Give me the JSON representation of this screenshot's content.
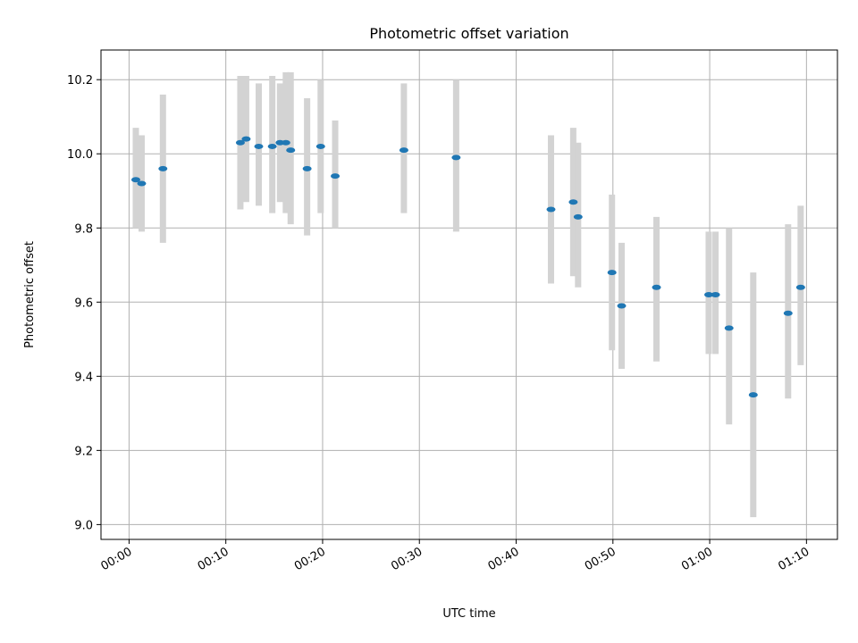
{
  "chart_data": {
    "type": "scatter",
    "title": "Photometric offset variation",
    "xlabel": "UTC time",
    "ylabel": "Photometric offset",
    "x_unit": "minutes",
    "xlim": [
      -2.9,
      73.2
    ],
    "ylim": [
      8.96,
      10.28
    ],
    "grid": true,
    "legend": "none",
    "colors": {
      "marker": "#1f77b4",
      "errorbar": "#d3d3d3",
      "grid": "#b0b0b0",
      "frame": "#000000"
    },
    "x_ticks": [
      {
        "value": 0,
        "label": "00:00"
      },
      {
        "value": 10,
        "label": "00:10"
      },
      {
        "value": 20,
        "label": "00:20"
      },
      {
        "value": 30,
        "label": "00:30"
      },
      {
        "value": 40,
        "label": "00:40"
      },
      {
        "value": 50,
        "label": "00:50"
      },
      {
        "value": 60,
        "label": "01:00"
      },
      {
        "value": 70,
        "label": "01:10"
      }
    ],
    "y_ticks": [
      {
        "value": 9.0,
        "label": "9.0"
      },
      {
        "value": 9.2,
        "label": "9.2"
      },
      {
        "value": 9.4,
        "label": "9.4"
      },
      {
        "value": 9.6,
        "label": "9.6"
      },
      {
        "value": 9.8,
        "label": "9.8"
      },
      {
        "value": 10.0,
        "label": "10.0"
      },
      {
        "value": 10.2,
        "label": "10.2"
      }
    ],
    "series": [
      {
        "points": [
          {
            "x": 0.7,
            "y": 9.93,
            "lo": 9.8,
            "hi": 10.07
          },
          {
            "x": 1.3,
            "y": 9.92,
            "lo": 9.79,
            "hi": 10.05
          },
          {
            "x": 3.5,
            "y": 9.96,
            "lo": 9.76,
            "hi": 10.16
          },
          {
            "x": 11.5,
            "y": 10.03,
            "lo": 9.85,
            "hi": 10.21
          },
          {
            "x": 12.1,
            "y": 10.04,
            "lo": 9.87,
            "hi": 10.21
          },
          {
            "x": 13.4,
            "y": 10.02,
            "lo": 9.86,
            "hi": 10.19
          },
          {
            "x": 14.8,
            "y": 10.02,
            "lo": 9.84,
            "hi": 10.21
          },
          {
            "x": 15.6,
            "y": 10.03,
            "lo": 9.87,
            "hi": 10.19
          },
          {
            "x": 16.2,
            "y": 10.03,
            "lo": 9.84,
            "hi": 10.22
          },
          {
            "x": 16.7,
            "y": 10.01,
            "lo": 9.81,
            "hi": 10.22
          },
          {
            "x": 18.4,
            "y": 9.96,
            "lo": 9.78,
            "hi": 10.15
          },
          {
            "x": 19.8,
            "y": 10.02,
            "lo": 9.84,
            "hi": 10.2
          },
          {
            "x": 21.3,
            "y": 9.94,
            "lo": 9.8,
            "hi": 10.09
          },
          {
            "x": 28.4,
            "y": 10.01,
            "lo": 9.84,
            "hi": 10.19
          },
          {
            "x": 33.8,
            "y": 9.99,
            "lo": 9.79,
            "hi": 10.2
          },
          {
            "x": 43.6,
            "y": 9.85,
            "lo": 9.65,
            "hi": 10.05
          },
          {
            "x": 45.9,
            "y": 9.87,
            "lo": 9.67,
            "hi": 10.07
          },
          {
            "x": 46.4,
            "y": 9.83,
            "lo": 9.64,
            "hi": 10.03
          },
          {
            "x": 49.9,
            "y": 9.68,
            "lo": 9.47,
            "hi": 9.89
          },
          {
            "x": 50.9,
            "y": 9.59,
            "lo": 9.42,
            "hi": 9.76
          },
          {
            "x": 54.5,
            "y": 9.64,
            "lo": 9.44,
            "hi": 9.83
          },
          {
            "x": 59.9,
            "y": 9.62,
            "lo": 9.46,
            "hi": 9.79
          },
          {
            "x": 60.6,
            "y": 9.62,
            "lo": 9.46,
            "hi": 9.79
          },
          {
            "x": 62.0,
            "y": 9.53,
            "lo": 9.27,
            "hi": 9.8
          },
          {
            "x": 64.5,
            "y": 9.35,
            "lo": 9.02,
            "hi": 9.68
          },
          {
            "x": 68.1,
            "y": 9.57,
            "lo": 9.34,
            "hi": 9.81
          },
          {
            "x": 69.4,
            "y": 9.64,
            "lo": 9.43,
            "hi": 9.86
          }
        ]
      }
    ]
  }
}
